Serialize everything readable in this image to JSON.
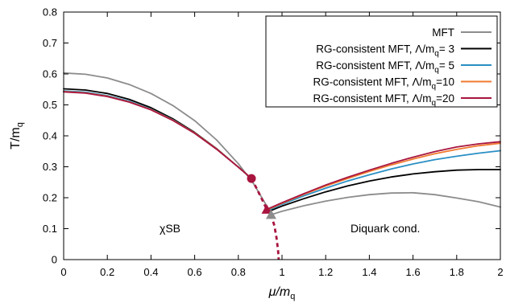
{
  "chart_data": {
    "type": "line",
    "title": "",
    "xlabel": "μ/m",
    "xlabel_sub": "q",
    "ylabel": "T/m",
    "ylabel_sub": "q",
    "xlim": [
      0,
      2
    ],
    "ylim": [
      0,
      0.8
    ],
    "x_ticks": [
      "0",
      "0.2",
      "0.4",
      "0.6",
      "0.8",
      "1",
      "1.2",
      "1.4",
      "1.6",
      "1.8",
      "2"
    ],
    "y_ticks": [
      "0",
      "0.1",
      "0.2",
      "0.3",
      "0.4",
      "0.5",
      "0.6",
      "0.7",
      "0.8"
    ],
    "grid": false,
    "legend_position": "top-right",
    "legend": [
      {
        "label": "MFT",
        "sub": "",
        "tail": "",
        "color": "#8c8c8c"
      },
      {
        "label": "RG-consistent MFT, Λ/m",
        "sub": "q",
        "tail": "= 3",
        "color": "#000000"
      },
      {
        "label": "RG-consistent MFT, Λ/m",
        "sub": "q",
        "tail": "= 5",
        "color": "#2a8fc4"
      },
      {
        "label": "RG-consistent MFT, Λ/m",
        "sub": "q",
        "tail": "=10",
        "color": "#f07a2e"
      },
      {
        "label": "RG-consistent MFT, Λ/m",
        "sub": "q",
        "tail": "=20",
        "color": "#a8153f"
      }
    ],
    "annotations": {
      "chiral": "χSB",
      "diquark": "Diquark cond."
    },
    "series": [
      {
        "color": "#8c8c8c",
        "segments": [
          [
            [
              0,
              0.603
            ],
            [
              0.1,
              0.599
            ],
            [
              0.2,
              0.587
            ],
            [
              0.3,
              0.566
            ],
            [
              0.4,
              0.537
            ],
            [
              0.5,
              0.498
            ],
            [
              0.6,
              0.449
            ],
            [
              0.7,
              0.387
            ],
            [
              0.8,
              0.31
            ],
            [
              0.87,
              0.245
            ],
            [
              0.95,
              0.15
            ]
          ],
          [
            [
              0.95,
              0.145
            ],
            [
              1.0,
              0.156
            ],
            [
              1.1,
              0.174
            ],
            [
              1.2,
              0.189
            ],
            [
              1.3,
              0.201
            ],
            [
              1.4,
              0.21
            ],
            [
              1.5,
              0.215
            ],
            [
              1.6,
              0.216
            ],
            [
              1.7,
              0.21
            ],
            [
              1.8,
              0.199
            ],
            [
              1.9,
              0.187
            ],
            [
              2.0,
              0.17
            ]
          ]
        ]
      },
      {
        "color": "#000000",
        "segments": [
          [
            [
              0,
              0.552
            ],
            [
              0.1,
              0.548
            ],
            [
              0.2,
              0.537
            ],
            [
              0.3,
              0.518
            ],
            [
              0.4,
              0.491
            ],
            [
              0.5,
              0.455
            ],
            [
              0.6,
              0.411
            ],
            [
              0.7,
              0.359
            ],
            [
              0.8,
              0.299
            ],
            [
              0.86,
              0.262
            ]
          ],
          [
            [
              0.93,
              0.153
            ],
            [
              1.0,
              0.173
            ],
            [
              1.1,
              0.197
            ],
            [
              1.2,
              0.219
            ],
            [
              1.3,
              0.238
            ],
            [
              1.4,
              0.254
            ],
            [
              1.5,
              0.267
            ],
            [
              1.6,
              0.277
            ],
            [
              1.7,
              0.284
            ],
            [
              1.8,
              0.289
            ],
            [
              1.9,
              0.291
            ],
            [
              2.0,
              0.291
            ]
          ]
        ]
      },
      {
        "color": "#2a8fc4",
        "segments": [
          [
            [
              0,
              0.545
            ],
            [
              0.1,
              0.541
            ],
            [
              0.2,
              0.53
            ],
            [
              0.3,
              0.512
            ],
            [
              0.4,
              0.486
            ],
            [
              0.5,
              0.452
            ],
            [
              0.6,
              0.409
            ],
            [
              0.7,
              0.358
            ],
            [
              0.8,
              0.299
            ],
            [
              0.86,
              0.262
            ]
          ],
          [
            [
              0.93,
              0.157
            ],
            [
              1.0,
              0.179
            ],
            [
              1.1,
              0.206
            ],
            [
              1.2,
              0.231
            ],
            [
              1.3,
              0.254
            ],
            [
              1.4,
              0.274
            ],
            [
              1.5,
              0.293
            ],
            [
              1.6,
              0.309
            ],
            [
              1.7,
              0.323
            ],
            [
              1.8,
              0.334
            ],
            [
              1.9,
              0.344
            ],
            [
              2.0,
              0.352
            ]
          ]
        ]
      },
      {
        "color": "#f07a2e",
        "segments": [
          [
            [
              0,
              0.543
            ],
            [
              0.1,
              0.539
            ],
            [
              0.2,
              0.528
            ],
            [
              0.3,
              0.51
            ],
            [
              0.4,
              0.485
            ],
            [
              0.5,
              0.451
            ],
            [
              0.6,
              0.409
            ],
            [
              0.7,
              0.358
            ],
            [
              0.8,
              0.299
            ],
            [
              0.86,
              0.262
            ]
          ],
          [
            [
              0.93,
              0.16
            ],
            [
              1.0,
              0.182
            ],
            [
              1.1,
              0.211
            ],
            [
              1.2,
              0.238
            ],
            [
              1.3,
              0.262
            ],
            [
              1.4,
              0.285
            ],
            [
              1.5,
              0.306
            ],
            [
              1.6,
              0.325
            ],
            [
              1.7,
              0.342
            ],
            [
              1.8,
              0.356
            ],
            [
              1.9,
              0.368
            ],
            [
              2.0,
              0.376
            ]
          ]
        ]
      },
      {
        "color": "#a8153f",
        "segments": [
          [
            [
              0,
              0.542
            ],
            [
              0.1,
              0.538
            ],
            [
              0.2,
              0.527
            ],
            [
              0.3,
              0.509
            ],
            [
              0.4,
              0.484
            ],
            [
              0.5,
              0.45
            ],
            [
              0.6,
              0.408
            ],
            [
              0.7,
              0.357
            ],
            [
              0.8,
              0.299
            ],
            [
              0.86,
              0.262
            ]
          ],
          [
            [
              0.93,
              0.162
            ],
            [
              1.0,
              0.184
            ],
            [
              1.1,
              0.213
            ],
            [
              1.2,
              0.241
            ],
            [
              1.3,
              0.266
            ],
            [
              1.4,
              0.289
            ],
            [
              1.5,
              0.311
            ],
            [
              1.6,
              0.331
            ],
            [
              1.7,
              0.349
            ],
            [
              1.8,
              0.364
            ],
            [
              1.9,
              0.374
            ],
            [
              2.0,
              0.381
            ]
          ]
        ]
      }
    ],
    "dashed_segments": [
      {
        "color": "#a8153f",
        "points": [
          [
            0.86,
            0.262
          ],
          [
            0.88,
            0.235
          ],
          [
            0.9,
            0.207
          ],
          [
            0.915,
            0.185
          ],
          [
            0.93,
            0.162
          ]
        ]
      },
      {
        "color": "#a8153f",
        "points": [
          [
            0.95,
            0.145
          ],
          [
            0.965,
            0.11
          ],
          [
            0.975,
            0.07
          ],
          [
            0.982,
            0.03
          ],
          [
            0.985,
            0.0
          ]
        ]
      }
    ],
    "markers": [
      {
        "shape": "circle",
        "x": 0.86,
        "y": 0.262,
        "color": "#a8153f"
      },
      {
        "shape": "triangle",
        "x": 0.93,
        "y": 0.162,
        "color": "#a8153f"
      },
      {
        "shape": "triangle",
        "x": 0.95,
        "y": 0.145,
        "color": "#8c8c8c"
      }
    ]
  }
}
